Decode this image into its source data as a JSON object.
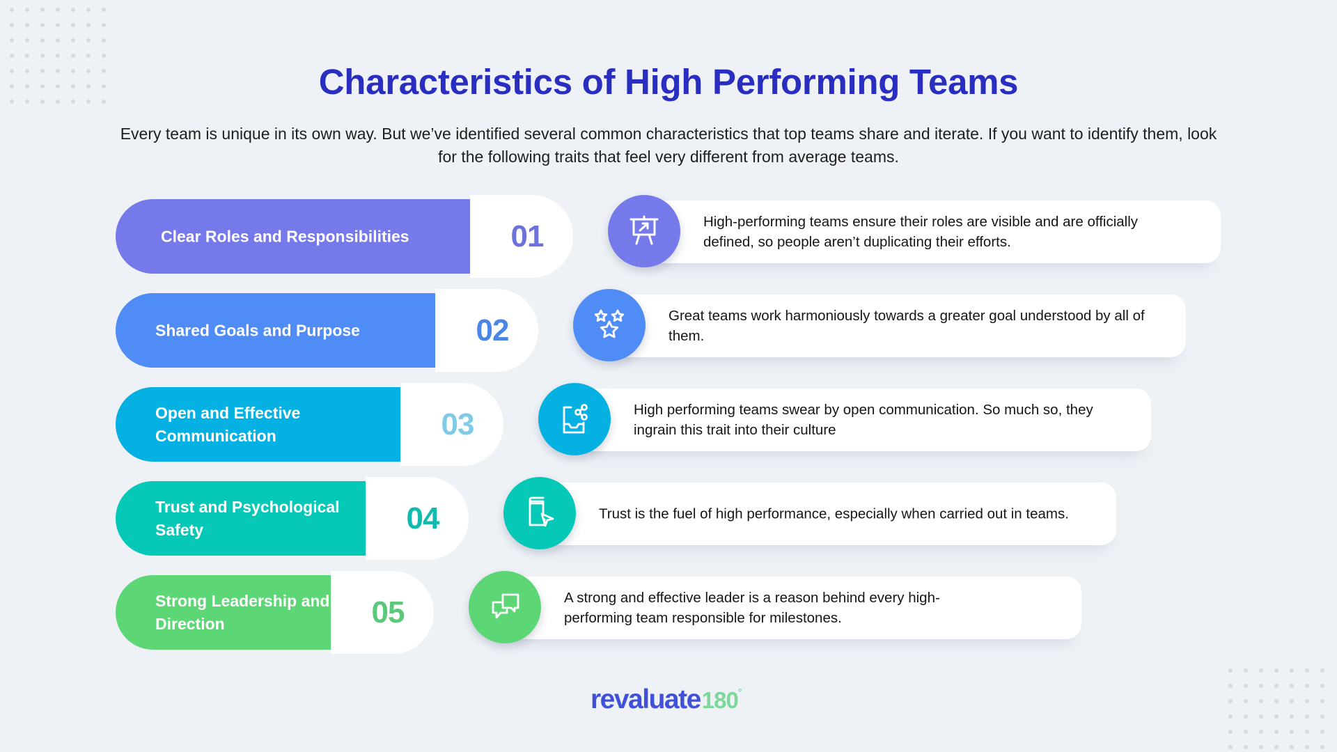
{
  "title": "Characteristics of High Performing Teams",
  "subtitle": {
    "line1": "Every team is unique in its own way. But we’ve identified several common characteristics that top teams share and iterate. If you want to identify them, look",
    "line2": "for the following traits that feel very different from average teams."
  },
  "items": [
    {
      "number": "01",
      "label": "Clear Roles and Responsibilities",
      "description": "High-performing teams ensure their roles are visible and are officially defined, so people aren’t duplicating their efforts.",
      "icon": "presentation-board-icon",
      "bar_color": "#7679E9",
      "number_color": "#6E72DB"
    },
    {
      "number": "02",
      "label": "Shared Goals and Purpose",
      "description": "Great teams work harmoniously towards a greater goal understood by all of them.",
      "icon": "stars-icon",
      "bar_color": "#4F8CF5",
      "number_color": "#4A86E8"
    },
    {
      "number": "03",
      "label": "Open and Effective Communication",
      "description": "High performing teams swear by open communication. So much so, they ingrain this trait into their culture",
      "icon": "share-inbox-icon",
      "bar_color": "#05B1E2",
      "number_color": "#7FCBE6"
    },
    {
      "number": "04",
      "label": "Trust and Psychological Safety",
      "description": "Trust is the fuel of high performance, especially when carried out in teams.",
      "icon": "book-cursor-icon",
      "bar_color": "#05C9B6",
      "number_color": "#12B9AE"
    },
    {
      "number": "05",
      "label": "Strong Leadership and Direction",
      "description": "A strong and effective leader is a reason behind every high-performing team responsible for milestones.",
      "icon": "chat-bubbles-icon",
      "bar_color": "#5DD776",
      "number_color": "#5CC97A"
    }
  ],
  "logo": {
    "text": "revaluate",
    "suffix": "180",
    "degree": "°"
  },
  "colors": {
    "background": "#EEF2F7",
    "title": "#2A2EC0"
  }
}
